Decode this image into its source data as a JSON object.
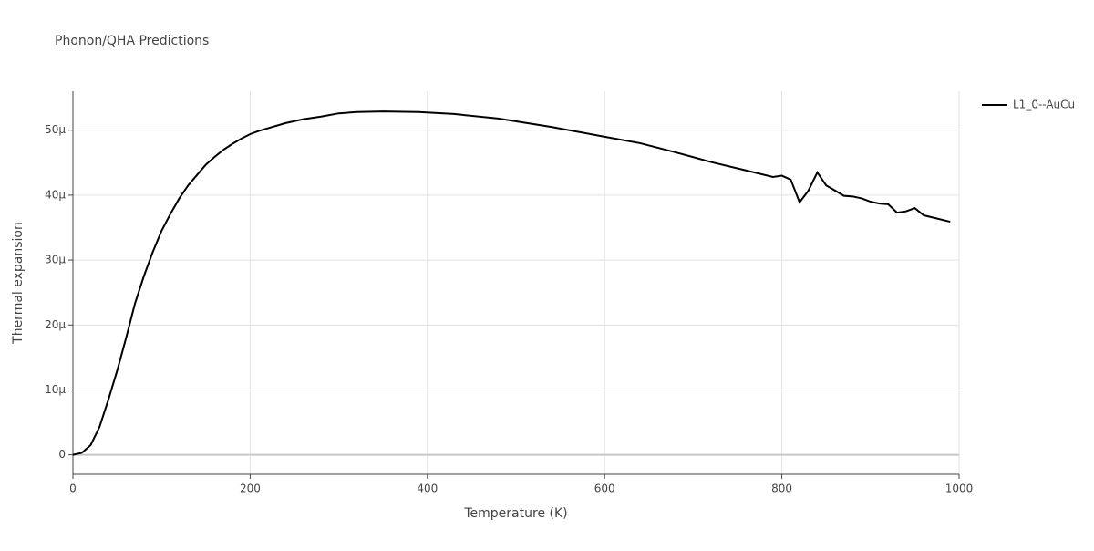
{
  "chart_data": {
    "type": "line",
    "title": "Phonon/QHA Predictions",
    "x_label": "Temperature (K)",
    "y_label": "Thermal expansion",
    "x": [
      0,
      10,
      20,
      30,
      40,
      50,
      60,
      70,
      80,
      90,
      100,
      110,
      120,
      130,
      140,
      150,
      160,
      170,
      180,
      190,
      200,
      210,
      220,
      240,
      260,
      280,
      300,
      320,
      350,
      390,
      430,
      480,
      540,
      600,
      640,
      680,
      720,
      760,
      790,
      800,
      810,
      820,
      830,
      840,
      850,
      860,
      870,
      880,
      890,
      900,
      910,
      920,
      930,
      940,
      950,
      960,
      990
    ],
    "series": [
      {
        "name": "L1_0--AuCu",
        "color": "#000000",
        "values": [
          0,
          3e-07,
          1.5e-06,
          4.3e-06,
          8.5e-06,
          1.3e-05,
          1.8e-05,
          2.33e-05,
          2.75e-05,
          3.12e-05,
          3.45e-05,
          3.71e-05,
          3.95e-05,
          4.15e-05,
          4.31e-05,
          4.47e-05,
          4.59e-05,
          4.7e-05,
          4.79e-05,
          4.87e-05,
          4.94e-05,
          4.99e-05,
          5.03e-05,
          5.11e-05,
          5.17e-05,
          5.21e-05,
          5.26e-05,
          5.28e-05,
          5.29e-05,
          5.28e-05,
          5.25e-05,
          5.18e-05,
          5.05e-05,
          4.9e-05,
          4.8e-05,
          4.66e-05,
          4.51e-05,
          4.38e-05,
          4.28e-05,
          4.3e-05,
          4.24e-05,
          3.89e-05,
          4.07e-05,
          4.35e-05,
          4.15e-05,
          4.07e-05,
          3.99e-05,
          3.98e-05,
          3.95e-05,
          3.9e-05,
          3.87e-05,
          3.86e-05,
          3.73e-05,
          3.75e-05,
          3.8e-05,
          3.69e-05,
          3.59e-05
        ]
      }
    ],
    "xlim": [
      0,
      1000
    ],
    "xticks": [
      0,
      200,
      400,
      600,
      800,
      1000
    ],
    "ylim": [
      -3e-06,
      5.6e-05
    ],
    "yticks": [
      0,
      {
        "value": 1e-05,
        "label": "10μ"
      },
      {
        "value": 2e-05,
        "label": "20μ"
      },
      {
        "value": 3e-05,
        "label": "30μ"
      },
      {
        "value": 4e-05,
        "label": "40μ"
      },
      {
        "value": 5e-05,
        "label": "50μ"
      }
    ],
    "grid": true,
    "legend": "top-right"
  }
}
